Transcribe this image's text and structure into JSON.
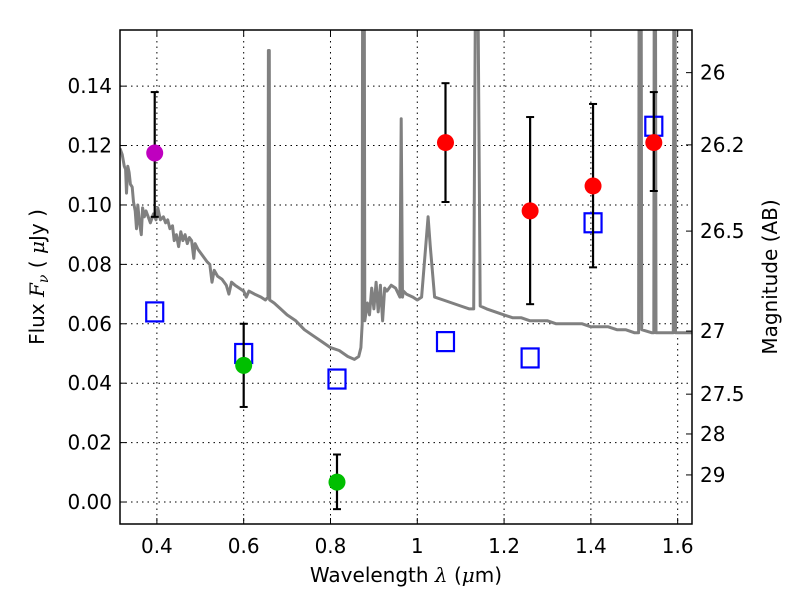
{
  "chart_data": {
    "type": "scatter",
    "title": "",
    "xlabel": "Wavelength  λ (μm)",
    "ylabel": "Flux  F_ν  ( μJy )",
    "ylabel_parts": {
      "pre": "Flux  ",
      "var": "F",
      "sub": "ν",
      "post": "  ( ",
      "mu": "μ",
      "unit": "Jy )"
    },
    "xlabel_parts": {
      "pre": "Wavelength  ",
      "lambda": "λ",
      "post_open": " (",
      "mu": "μ",
      "post": "m)"
    },
    "y2label": "Magnitude (AB)",
    "xlim": [
      0.315,
      1.633
    ],
    "ylim": [
      -0.0074,
      0.1589
    ],
    "grid": true,
    "x_ticks": [
      0.4,
      0.6,
      0.8,
      1.0,
      1.2,
      1.4,
      1.6
    ],
    "x_tick_labels": [
      "0.4",
      "0.6",
      "0.8",
      "1",
      "1.2",
      "1.4",
      "1.6"
    ],
    "y_ticks": [
      0.0,
      0.02,
      0.04,
      0.06,
      0.08,
      0.1,
      0.12,
      0.14
    ],
    "y_tick_labels": [
      "0.00",
      "0.02",
      "0.04",
      "0.06",
      "0.08",
      "0.10",
      "0.12",
      "0.14"
    ],
    "y2_ticks_mag": [
      26,
      26.2,
      26.5,
      27,
      27.5,
      28,
      29
    ],
    "y2_tick_labels": [
      "26",
      "26.2",
      "26.5",
      "27",
      "27.5",
      "28",
      "29"
    ],
    "y2_conversion": "flux_uJy = 10^((23.9 - mag)/2.5)",
    "series": [
      {
        "name": "observed-magenta",
        "kind": "errorbar-circle",
        "color": "#bf00bf",
        "points": [
          {
            "x": 0.395,
            "y": 0.1175,
            "ylo": 0.096,
            "yhi": 0.138
          }
        ]
      },
      {
        "name": "observed-green",
        "kind": "errorbar-circle",
        "color": "#00bf00",
        "points": [
          {
            "x": 0.6,
            "y": 0.046,
            "ylo": 0.032,
            "yhi": 0.06
          },
          {
            "x": 0.815,
            "y": 0.0067,
            "ylo": -0.0024,
            "yhi": 0.016
          }
        ]
      },
      {
        "name": "observed-red",
        "kind": "errorbar-circle",
        "color": "#ff0000",
        "points": [
          {
            "x": 1.065,
            "y": 0.121,
            "ylo": 0.101,
            "yhi": 0.141
          },
          {
            "x": 1.26,
            "y": 0.098,
            "ylo": 0.0666,
            "yhi": 0.1296
          },
          {
            "x": 1.405,
            "y": 0.1064,
            "ylo": 0.079,
            "yhi": 0.134
          },
          {
            "x": 1.545,
            "y": 0.121,
            "ylo": 0.1047,
            "yhi": 0.138
          }
        ]
      },
      {
        "name": "model-photometry",
        "kind": "open-square",
        "color": "#0000ff",
        "points": [
          {
            "x": 0.395,
            "y": 0.064
          },
          {
            "x": 0.6,
            "y": 0.05
          },
          {
            "x": 0.815,
            "y": 0.0414
          },
          {
            "x": 1.065,
            "y": 0.054
          },
          {
            "x": 1.26,
            "y": 0.0485
          },
          {
            "x": 1.405,
            "y": 0.094
          },
          {
            "x": 1.545,
            "y": 0.1265
          }
        ]
      },
      {
        "name": "model-spectrum",
        "kind": "line",
        "color": "#808080",
        "points": [
          [
            0.315,
            0.119
          ],
          [
            0.32,
            0.117
          ],
          [
            0.325,
            0.113
          ],
          [
            0.328,
            0.112
          ],
          [
            0.33,
            0.104
          ],
          [
            0.333,
            0.113
          ],
          [
            0.336,
            0.111
          ],
          [
            0.339,
            0.107
          ],
          [
            0.343,
            0.106
          ],
          [
            0.346,
            0.101
          ],
          [
            0.35,
            0.098
          ],
          [
            0.353,
            0.092
          ],
          [
            0.356,
            0.1
          ],
          [
            0.36,
            0.094
          ],
          [
            0.364,
            0.09
          ],
          [
            0.367,
            0.099
          ],
          [
            0.371,
            0.096
          ],
          [
            0.375,
            0.098
          ],
          [
            0.38,
            0.096
          ],
          [
            0.385,
            0.094
          ],
          [
            0.392,
            0.097
          ],
          [
            0.398,
            0.095
          ],
          [
            0.402,
            0.099
          ],
          [
            0.408,
            0.095
          ],
          [
            0.415,
            0.096
          ],
          [
            0.42,
            0.094
          ],
          [
            0.425,
            0.095
          ],
          [
            0.43,
            0.092
          ],
          [
            0.436,
            0.093
          ],
          [
            0.44,
            0.088
          ],
          [
            0.445,
            0.09
          ],
          [
            0.45,
            0.086
          ],
          [
            0.455,
            0.091
          ],
          [
            0.46,
            0.088
          ],
          [
            0.465,
            0.09
          ],
          [
            0.47,
            0.087
          ],
          [
            0.475,
            0.089
          ],
          [
            0.48,
            0.088
          ],
          [
            0.485,
            0.082
          ],
          [
            0.488,
            0.087
          ],
          [
            0.495,
            0.085
          ],
          [
            0.505,
            0.083
          ],
          [
            0.515,
            0.081
          ],
          [
            0.522,
            0.08
          ],
          [
            0.527,
            0.074
          ],
          [
            0.532,
            0.078
          ],
          [
            0.54,
            0.076
          ],
          [
            0.55,
            0.075
          ],
          [
            0.56,
            0.073
          ],
          [
            0.566,
            0.07
          ],
          [
            0.572,
            0.074
          ],
          [
            0.58,
            0.073
          ],
          [
            0.59,
            0.072
          ],
          [
            0.6,
            0.071
          ],
          [
            0.606,
            0.069
          ],
          [
            0.612,
            0.071
          ],
          [
            0.625,
            0.07
          ],
          [
            0.64,
            0.069
          ],
          [
            0.65,
            0.068
          ],
          [
            0.656,
            0.069
          ],
          [
            0.657,
            0.152
          ],
          [
            0.659,
            0.152
          ],
          [
            0.66,
            0.068
          ],
          [
            0.67,
            0.067
          ],
          [
            0.685,
            0.065
          ],
          [
            0.7,
            0.063
          ],
          [
            0.72,
            0.061
          ],
          [
            0.74,
            0.058
          ],
          [
            0.76,
            0.056
          ],
          [
            0.78,
            0.054
          ],
          [
            0.8,
            0.052
          ],
          [
            0.82,
            0.051
          ],
          [
            0.84,
            0.049
          ],
          [
            0.855,
            0.048
          ],
          [
            0.865,
            0.049
          ],
          [
            0.87,
            0.052
          ],
          [
            0.873,
            0.06
          ],
          [
            0.874,
            0.17
          ],
          [
            0.878,
            0.17
          ],
          [
            0.879,
            0.061
          ],
          [
            0.885,
            0.067
          ],
          [
            0.89,
            0.063
          ],
          [
            0.895,
            0.072
          ],
          [
            0.9,
            0.065
          ],
          [
            0.905,
            0.074
          ],
          [
            0.91,
            0.064
          ],
          [
            0.915,
            0.073
          ],
          [
            0.92,
            0.061
          ],
          [
            0.925,
            0.072
          ],
          [
            0.93,
            0.071
          ],
          [
            0.94,
            0.073
          ],
          [
            0.95,
            0.072
          ],
          [
            0.96,
            0.069
          ],
          [
            0.963,
            0.129
          ],
          [
            0.966,
            0.069
          ],
          [
            0.968,
            0.071
          ],
          [
            0.975,
            0.07
          ],
          [
            0.99,
            0.069
          ],
          [
            1.0,
            0.068
          ],
          [
            1.01,
            0.069
          ],
          [
            1.025,
            0.096
          ],
          [
            1.03,
            0.086
          ],
          [
            1.04,
            0.069
          ],
          [
            1.06,
            0.068
          ],
          [
            1.08,
            0.067
          ],
          [
            1.1,
            0.066
          ],
          [
            1.12,
            0.065
          ],
          [
            1.13,
            0.065
          ],
          [
            1.134,
            0.17
          ],
          [
            1.14,
            0.17
          ],
          [
            1.145,
            0.066
          ],
          [
            1.16,
            0.065
          ],
          [
            1.18,
            0.064
          ],
          [
            1.2,
            0.063
          ],
          [
            1.22,
            0.062
          ],
          [
            1.24,
            0.062
          ],
          [
            1.26,
            0.061
          ],
          [
            1.28,
            0.061
          ],
          [
            1.3,
            0.061
          ],
          [
            1.32,
            0.06
          ],
          [
            1.34,
            0.06
          ],
          [
            1.36,
            0.06
          ],
          [
            1.38,
            0.06
          ],
          [
            1.4,
            0.059
          ],
          [
            1.42,
            0.059
          ],
          [
            1.44,
            0.059
          ],
          [
            1.46,
            0.058
          ],
          [
            1.48,
            0.058
          ],
          [
            1.5,
            0.057
          ],
          [
            1.51,
            0.057
          ],
          [
            1.511,
            0.17
          ],
          [
            1.516,
            0.17
          ],
          [
            1.517,
            0.058
          ],
          [
            1.54,
            0.057
          ],
          [
            1.545,
            0.057
          ],
          [
            1.546,
            0.17
          ],
          [
            1.549,
            0.17
          ],
          [
            1.55,
            0.057
          ],
          [
            1.58,
            0.057
          ],
          [
            1.59,
            0.057
          ],
          [
            1.591,
            0.17
          ],
          [
            1.594,
            0.17
          ],
          [
            1.595,
            0.057
          ],
          [
            1.633,
            0.057
          ]
        ]
      }
    ]
  }
}
